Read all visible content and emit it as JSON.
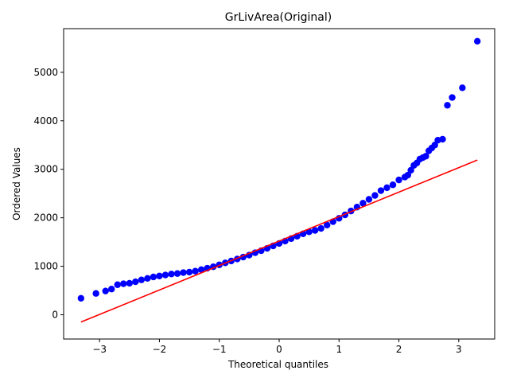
{
  "chart_data": {
    "type": "scatter",
    "title": "GrLivArea(Original)",
    "xlabel": "Theoretical quantiles",
    "ylabel": "Ordered Values",
    "xlim": [
      -3.6,
      3.6
    ],
    "ylim": [
      -500,
      5900
    ],
    "xticks": [
      -3,
      -2,
      -1,
      0,
      1,
      2,
      3
    ],
    "xtick_labels": [
      "−3",
      "−2",
      "−1",
      "0",
      "1",
      "2",
      "3"
    ],
    "yticks": [
      0,
      1000,
      2000,
      3000,
      4000,
      5000
    ],
    "ytick_labels": [
      "0",
      "1000",
      "2000",
      "3000",
      "4000",
      "5000"
    ],
    "grid": false,
    "legend": "none",
    "colors": {
      "points": "#0000ff",
      "fit_line": "#ff0000"
    },
    "series": [
      {
        "kind": "points",
        "x": [
          -3.31,
          -3.06,
          -2.9,
          -2.8,
          -2.7,
          -2.6,
          -2.5,
          -2.4,
          -2.3,
          -2.2,
          -2.1,
          -2.0,
          -1.9,
          -1.8,
          -1.7,
          -1.6,
          -1.5,
          -1.4,
          -1.3,
          -1.2,
          -1.1,
          -1.0,
          -0.9,
          -0.8,
          -0.7,
          -0.6,
          -0.5,
          -0.4,
          -0.3,
          -0.2,
          -0.1,
          0.0,
          0.1,
          0.2,
          0.3,
          0.4,
          0.5,
          0.6,
          0.7,
          0.8,
          0.9,
          1.0,
          1.1,
          1.2,
          1.3,
          1.4,
          1.5,
          1.6,
          1.7,
          1.8,
          1.9,
          2.0,
          2.1,
          2.15,
          2.2,
          2.25,
          2.3,
          2.35,
          2.4,
          2.45,
          2.5,
          2.55,
          2.6,
          2.65,
          2.73,
          2.81,
          2.89,
          3.06,
          3.31
        ],
        "y": [
          340,
          440,
          490,
          530,
          620,
          640,
          650,
          680,
          720,
          750,
          780,
          800,
          820,
          840,
          850,
          870,
          880,
          900,
          930,
          960,
          990,
          1030,
          1070,
          1110,
          1150,
          1190,
          1230,
          1280,
          1320,
          1370,
          1420,
          1470,
          1520,
          1570,
          1620,
          1670,
          1710,
          1740,
          1780,
          1850,
          1920,
          1990,
          2060,
          2140,
          2220,
          2300,
          2380,
          2460,
          2560,
          2620,
          2680,
          2780,
          2840,
          2880,
          2980,
          3080,
          3130,
          3210,
          3240,
          3270,
          3380,
          3440,
          3500,
          3600,
          3620,
          4320,
          4480,
          4680,
          5640
        ]
      },
      {
        "kind": "fit_line",
        "x": [
          -3.31,
          3.31
        ],
        "y": [
          -150,
          3190
        ]
      }
    ]
  }
}
